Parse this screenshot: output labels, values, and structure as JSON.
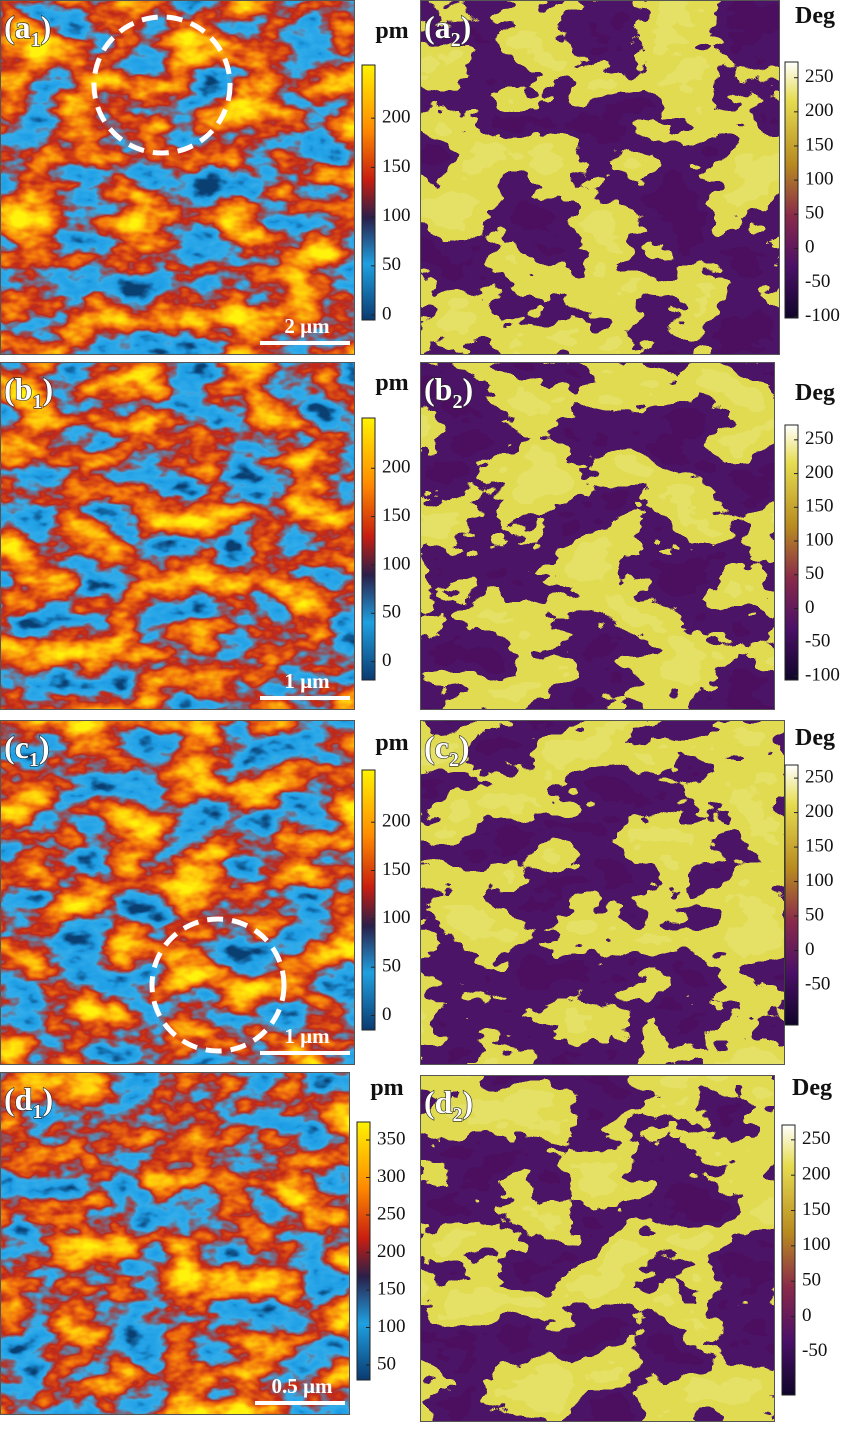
{
  "rows": [
    {
      "amplitude": {
        "label": [
          "(a",
          "1",
          ")"
        ],
        "scale_bar": "2 µm",
        "colorbar": {
          "unit": "pm",
          "lim": [
            -5,
            254
          ],
          "ticks": [
            0,
            50,
            100,
            150,
            200
          ]
        }
      },
      "phase": {
        "label": [
          "(a",
          "2",
          ")"
        ],
        "colorbar": {
          "unit": "Deg",
          "lim": [
            -102,
            273
          ],
          "ticks": [
            -100,
            -50,
            0,
            50,
            100,
            150,
            200,
            250
          ]
        }
      }
    },
    {
      "amplitude": {
        "label": [
          "(b",
          "1",
          ")"
        ],
        "scale_bar": "1 µm",
        "colorbar": {
          "unit": "pm",
          "lim": [
            -19,
            252
          ],
          "ticks": [
            0,
            50,
            100,
            150,
            200
          ]
        }
      },
      "phase": {
        "label": [
          "(b",
          "2",
          ")"
        ],
        "colorbar": {
          "unit": "Deg",
          "lim": [
            -106,
            272
          ],
          "ticks": [
            -100,
            -50,
            0,
            50,
            100,
            150,
            200,
            250
          ]
        }
      }
    },
    {
      "amplitude": {
        "label": [
          "(c",
          "1",
          ")"
        ],
        "scale_bar": "1 µm",
        "colorbar": {
          "unit": "pm",
          "lim": [
            -15,
            254
          ],
          "ticks": [
            0,
            50,
            100,
            150,
            200
          ]
        }
      },
      "phase": {
        "label": [
          "(c",
          "2",
          ")"
        ],
        "colorbar": {
          "unit": "Deg",
          "lim": [
            -108,
            269
          ],
          "ticks": [
            -50,
            0,
            50,
            100,
            150,
            200,
            250
          ]
        }
      }
    },
    {
      "amplitude": {
        "label": [
          "(d",
          "1",
          ")"
        ],
        "scale_bar": "0.5 µm",
        "colorbar": {
          "unit": "pm",
          "lim": [
            30,
            374
          ],
          "ticks": [
            50,
            100,
            150,
            200,
            250,
            300,
            350
          ]
        }
      },
      "phase": {
        "label": [
          "(d",
          "2",
          ")"
        ],
        "colorbar": {
          "unit": "Deg",
          "lim": [
            -111,
            271
          ],
          "ticks": [
            -50,
            0,
            50,
            100,
            150,
            200,
            250
          ]
        }
      }
    }
  ]
}
